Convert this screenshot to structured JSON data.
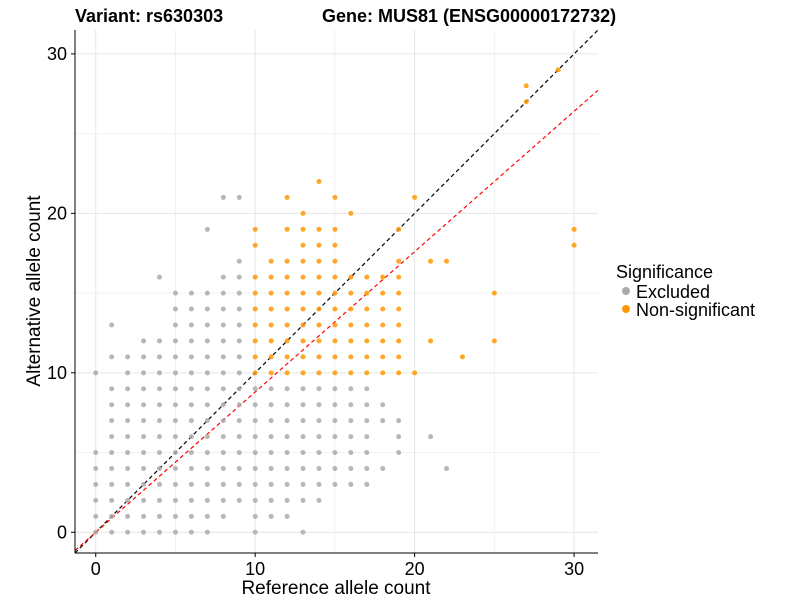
{
  "chart_data": {
    "type": "scatter",
    "title_left": "Variant: rs630303",
    "title_right": "Gene: MUS81 (ENSG00000172732)",
    "xlabel": "Reference allele count",
    "ylabel": "Alternative allele count",
    "xlim": [
      -1.3,
      31.5
    ],
    "ylim": [
      -1.3,
      31.5
    ],
    "x_ticks": [
      0,
      10,
      20,
      30
    ],
    "y_ticks": [
      0,
      10,
      20,
      30
    ],
    "grid": true,
    "legend_position": "right",
    "legend_title": "Significance",
    "reference_lines": [
      {
        "slope": 1.0,
        "color": "#000000",
        "style": "dashed"
      },
      {
        "slope": 0.88,
        "color": "#ff0000",
        "style": "dashed"
      }
    ],
    "series": [
      {
        "name": "Excluded",
        "color": "#aaaaaa",
        "points": [
          [
            0,
            0
          ],
          [
            0,
            1
          ],
          [
            0,
            2
          ],
          [
            0,
            3
          ],
          [
            0,
            4
          ],
          [
            0,
            5
          ],
          [
            0,
            10
          ],
          [
            1,
            0
          ],
          [
            1,
            1
          ],
          [
            1,
            2
          ],
          [
            1,
            3
          ],
          [
            1,
            4
          ],
          [
            1,
            5
          ],
          [
            1,
            6
          ],
          [
            1,
            7
          ],
          [
            1,
            8
          ],
          [
            1,
            9
          ],
          [
            1,
            11
          ],
          [
            1,
            13
          ],
          [
            2,
            0
          ],
          [
            2,
            1
          ],
          [
            2,
            2
          ],
          [
            2,
            3
          ],
          [
            2,
            4
          ],
          [
            2,
            5
          ],
          [
            2,
            6
          ],
          [
            2,
            7
          ],
          [
            2,
            8
          ],
          [
            2,
            9
          ],
          [
            2,
            10
          ],
          [
            2,
            11
          ],
          [
            3,
            0
          ],
          [
            3,
            1
          ],
          [
            3,
            2
          ],
          [
            3,
            3
          ],
          [
            3,
            4
          ],
          [
            3,
            5
          ],
          [
            3,
            6
          ],
          [
            3,
            7
          ],
          [
            3,
            8
          ],
          [
            3,
            9
          ],
          [
            3,
            10
          ],
          [
            3,
            11
          ],
          [
            3,
            12
          ],
          [
            4,
            0
          ],
          [
            4,
            1
          ],
          [
            4,
            2
          ],
          [
            4,
            3
          ],
          [
            4,
            4
          ],
          [
            4,
            5
          ],
          [
            4,
            6
          ],
          [
            4,
            7
          ],
          [
            4,
            8
          ],
          [
            4,
            9
          ],
          [
            4,
            10
          ],
          [
            4,
            11
          ],
          [
            4,
            12
          ],
          [
            4,
            16
          ],
          [
            5,
            0
          ],
          [
            5,
            1
          ],
          [
            5,
            2
          ],
          [
            5,
            3
          ],
          [
            5,
            4
          ],
          [
            5,
            5
          ],
          [
            5,
            6
          ],
          [
            5,
            7
          ],
          [
            5,
            8
          ],
          [
            5,
            9
          ],
          [
            5,
            10
          ],
          [
            5,
            11
          ],
          [
            5,
            12
          ],
          [
            5,
            13
          ],
          [
            5,
            14
          ],
          [
            5,
            15
          ],
          [
            6,
            0
          ],
          [
            6,
            1
          ],
          [
            6,
            2
          ],
          [
            6,
            3
          ],
          [
            6,
            4
          ],
          [
            6,
            5
          ],
          [
            6,
            6
          ],
          [
            6,
            7
          ],
          [
            6,
            8
          ],
          [
            6,
            9
          ],
          [
            6,
            10
          ],
          [
            6,
            11
          ],
          [
            6,
            12
          ],
          [
            6,
            13
          ],
          [
            6,
            14
          ],
          [
            6,
            15
          ],
          [
            7,
            0
          ],
          [
            7,
            1
          ],
          [
            7,
            2
          ],
          [
            7,
            3
          ],
          [
            7,
            4
          ],
          [
            7,
            5
          ],
          [
            7,
            6
          ],
          [
            7,
            7
          ],
          [
            7,
            8
          ],
          [
            7,
            9
          ],
          [
            7,
            10
          ],
          [
            7,
            11
          ],
          [
            7,
            12
          ],
          [
            7,
            13
          ],
          [
            7,
            14
          ],
          [
            7,
            15
          ],
          [
            7,
            19
          ],
          [
            8,
            1
          ],
          [
            8,
            2
          ],
          [
            8,
            3
          ],
          [
            8,
            4
          ],
          [
            8,
            5
          ],
          [
            8,
            6
          ],
          [
            8,
            7
          ],
          [
            8,
            8
          ],
          [
            8,
            9
          ],
          [
            8,
            10
          ],
          [
            8,
            11
          ],
          [
            8,
            12
          ],
          [
            8,
            13
          ],
          [
            8,
            14
          ],
          [
            8,
            15
          ],
          [
            8,
            16
          ],
          [
            8,
            21
          ],
          [
            9,
            2
          ],
          [
            9,
            3
          ],
          [
            9,
            4
          ],
          [
            9,
            5
          ],
          [
            9,
            6
          ],
          [
            9,
            7
          ],
          [
            9,
            8
          ],
          [
            9,
            9
          ],
          [
            9,
            10
          ],
          [
            9,
            11
          ],
          [
            9,
            12
          ],
          [
            9,
            13
          ],
          [
            9,
            14
          ],
          [
            9,
            15
          ],
          [
            9,
            16
          ],
          [
            9,
            17
          ],
          [
            9,
            21
          ],
          [
            10,
            0
          ],
          [
            10,
            1
          ],
          [
            10,
            2
          ],
          [
            10,
            3
          ],
          [
            10,
            4
          ],
          [
            10,
            5
          ],
          [
            10,
            6
          ],
          [
            10,
            7
          ],
          [
            10,
            8
          ],
          [
            10,
            9
          ],
          [
            11,
            1
          ],
          [
            11,
            2
          ],
          [
            11,
            3
          ],
          [
            11,
            4
          ],
          [
            11,
            5
          ],
          [
            11,
            6
          ],
          [
            11,
            7
          ],
          [
            11,
            8
          ],
          [
            11,
            9
          ],
          [
            12,
            1
          ],
          [
            12,
            2
          ],
          [
            12,
            3
          ],
          [
            12,
            4
          ],
          [
            12,
            5
          ],
          [
            12,
            6
          ],
          [
            12,
            7
          ],
          [
            12,
            8
          ],
          [
            12,
            9
          ],
          [
            13,
            0
          ],
          [
            13,
            2
          ],
          [
            13,
            3
          ],
          [
            13,
            4
          ],
          [
            13,
            5
          ],
          [
            13,
            6
          ],
          [
            13,
            7
          ],
          [
            13,
            8
          ],
          [
            13,
            9
          ],
          [
            14,
            2
          ],
          [
            14,
            3
          ],
          [
            14,
            4
          ],
          [
            14,
            5
          ],
          [
            14,
            6
          ],
          [
            14,
            7
          ],
          [
            14,
            8
          ],
          [
            14,
            9
          ],
          [
            15,
            3
          ],
          [
            15,
            4
          ],
          [
            15,
            5
          ],
          [
            15,
            6
          ],
          [
            15,
            7
          ],
          [
            15,
            8
          ],
          [
            15,
            9
          ],
          [
            16,
            3
          ],
          [
            16,
            4
          ],
          [
            16,
            5
          ],
          [
            16,
            6
          ],
          [
            16,
            7
          ],
          [
            16,
            8
          ],
          [
            16,
            9
          ],
          [
            17,
            3
          ],
          [
            17,
            4
          ],
          [
            17,
            5
          ],
          [
            17,
            6
          ],
          [
            17,
            7
          ],
          [
            17,
            8
          ],
          [
            17,
            9
          ],
          [
            18,
            4
          ],
          [
            18,
            7
          ],
          [
            18,
            8
          ],
          [
            19,
            5
          ],
          [
            19,
            6
          ],
          [
            19,
            7
          ],
          [
            21,
            6
          ],
          [
            22,
            4
          ]
        ]
      },
      {
        "name": "Non-significant",
        "color": "#ff9900",
        "points": [
          [
            10,
            10
          ],
          [
            10,
            11
          ],
          [
            10,
            12
          ],
          [
            10,
            13
          ],
          [
            10,
            14
          ],
          [
            10,
            15
          ],
          [
            10,
            16
          ],
          [
            10,
            18
          ],
          [
            10,
            19
          ],
          [
            11,
            10
          ],
          [
            11,
            11
          ],
          [
            11,
            12
          ],
          [
            11,
            13
          ],
          [
            11,
            14
          ],
          [
            11,
            15
          ],
          [
            11,
            16
          ],
          [
            11,
            17
          ],
          [
            12,
            10
          ],
          [
            12,
            11
          ],
          [
            12,
            12
          ],
          [
            12,
            13
          ],
          [
            12,
            14
          ],
          [
            12,
            15
          ],
          [
            12,
            16
          ],
          [
            12,
            17
          ],
          [
            12,
            19
          ],
          [
            12,
            21
          ],
          [
            13,
            10
          ],
          [
            13,
            11
          ],
          [
            13,
            12
          ],
          [
            13,
            13
          ],
          [
            13,
            14
          ],
          [
            13,
            15
          ],
          [
            13,
            16
          ],
          [
            13,
            17
          ],
          [
            13,
            18
          ],
          [
            13,
            19
          ],
          [
            13,
            20
          ],
          [
            14,
            10
          ],
          [
            14,
            11
          ],
          [
            14,
            12
          ],
          [
            14,
            13
          ],
          [
            14,
            14
          ],
          [
            14,
            15
          ],
          [
            14,
            16
          ],
          [
            14,
            17
          ],
          [
            14,
            18
          ],
          [
            14,
            19
          ],
          [
            14,
            22
          ],
          [
            15,
            10
          ],
          [
            15,
            11
          ],
          [
            15,
            12
          ],
          [
            15,
            13
          ],
          [
            15,
            14
          ],
          [
            15,
            15
          ],
          [
            15,
            16
          ],
          [
            15,
            17
          ],
          [
            15,
            18
          ],
          [
            15,
            19
          ],
          [
            15,
            21
          ],
          [
            16,
            10
          ],
          [
            16,
            11
          ],
          [
            16,
            12
          ],
          [
            16,
            13
          ],
          [
            16,
            14
          ],
          [
            16,
            15
          ],
          [
            16,
            16
          ],
          [
            16,
            20
          ],
          [
            17,
            10
          ],
          [
            17,
            11
          ],
          [
            17,
            12
          ],
          [
            17,
            13
          ],
          [
            17,
            14
          ],
          [
            17,
            15
          ],
          [
            17,
            16
          ],
          [
            18,
            10
          ],
          [
            18,
            11
          ],
          [
            18,
            12
          ],
          [
            18,
            13
          ],
          [
            18,
            14
          ],
          [
            18,
            15
          ],
          [
            18,
            16
          ],
          [
            19,
            10
          ],
          [
            19,
            11
          ],
          [
            19,
            12
          ],
          [
            19,
            13
          ],
          [
            19,
            14
          ],
          [
            19,
            15
          ],
          [
            19,
            16
          ],
          [
            19,
            17
          ],
          [
            19,
            19
          ],
          [
            20,
            10
          ],
          [
            20,
            21
          ],
          [
            21,
            12
          ],
          [
            21,
            17
          ],
          [
            22,
            17
          ],
          [
            23,
            11
          ],
          [
            25,
            12
          ],
          [
            25,
            15
          ],
          [
            27,
            27
          ],
          [
            27,
            28
          ],
          [
            29,
            29
          ],
          [
            30,
            18
          ],
          [
            30,
            19
          ]
        ]
      }
    ]
  }
}
